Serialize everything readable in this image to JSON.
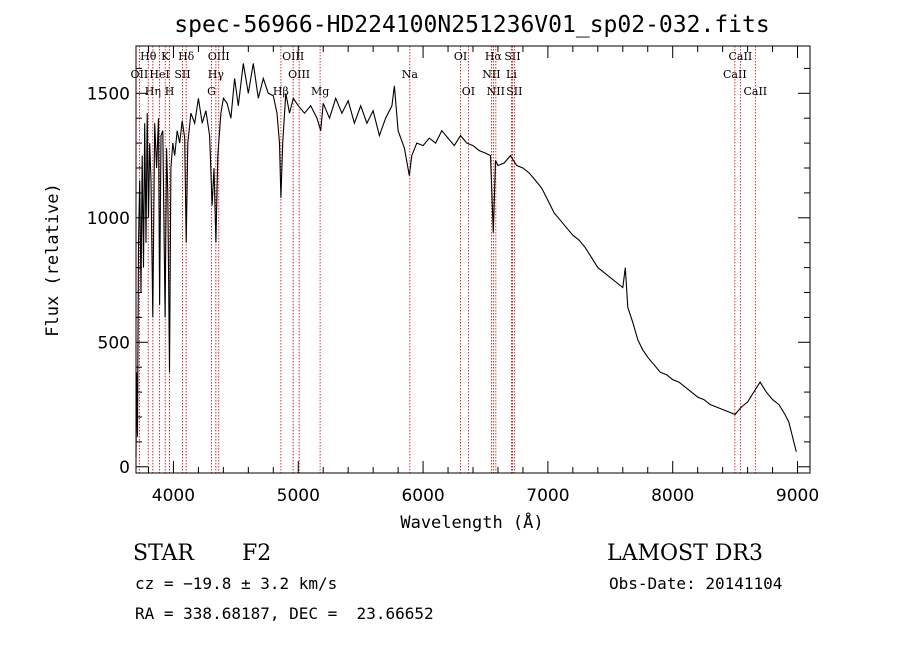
{
  "chart_data": {
    "type": "line",
    "title": "spec-56966-HD224100N251236V01_sp02-032.fits",
    "xlabel": "Wavelength (Å)",
    "ylabel": "Flux (relative)",
    "xlim": [
      3700,
      9100
    ],
    "ylim": [
      -25,
      1690
    ],
    "xticks": [
      4000,
      5000,
      6000,
      7000,
      8000,
      9000
    ],
    "yticks": [
      0,
      500,
      1000,
      1500
    ],
    "line_color": "#000000",
    "marker_color": "#cc0000",
    "series": [
      {
        "name": "flux",
        "points": [
          [
            3700,
            40
          ],
          [
            3705,
            380
          ],
          [
            3712,
            120
          ],
          [
            3720,
            900
          ],
          [
            3730,
            1150
          ],
          [
            3740,
            700
          ],
          [
            3750,
            1250
          ],
          [
            3760,
            800
          ],
          [
            3770,
            1380
          ],
          [
            3780,
            900
          ],
          [
            3790,
            1420
          ],
          [
            3800,
            1000
          ],
          [
            3810,
            1300
          ],
          [
            3820,
            1150
          ],
          [
            3835,
            600
          ],
          [
            3850,
            1380
          ],
          [
            3865,
            1200
          ],
          [
            3880,
            1400
          ],
          [
            3889,
            650
          ],
          [
            3900,
            1330
          ],
          [
            3915,
            1350
          ],
          [
            3933,
            600
          ],
          [
            3945,
            1280
          ],
          [
            3955,
            1100
          ],
          [
            3968,
            380
          ],
          [
            3980,
            1200
          ],
          [
            3995,
            1300
          ],
          [
            4010,
            1250
          ],
          [
            4030,
            1350
          ],
          [
            4050,
            1300
          ],
          [
            4070,
            1390
          ],
          [
            4090,
            1320
          ],
          [
            4102,
            900
          ],
          [
            4115,
            1300
          ],
          [
            4140,
            1420
          ],
          [
            4170,
            1380
          ],
          [
            4200,
            1480
          ],
          [
            4230,
            1380
          ],
          [
            4260,
            1430
          ],
          [
            4290,
            1330
          ],
          [
            4310,
            1050
          ],
          [
            4325,
            1200
          ],
          [
            4340,
            900
          ],
          [
            4355,
            1250
          ],
          [
            4380,
            1420
          ],
          [
            4400,
            1480
          ],
          [
            4430,
            1460
          ],
          [
            4460,
            1400
          ],
          [
            4490,
            1560
          ],
          [
            4520,
            1450
          ],
          [
            4560,
            1620
          ],
          [
            4600,
            1500
          ],
          [
            4640,
            1620
          ],
          [
            4680,
            1480
          ],
          [
            4720,
            1560
          ],
          [
            4760,
            1500
          ],
          [
            4800,
            1490
          ],
          [
            4830,
            1420
          ],
          [
            4850,
            1300
          ],
          [
            4861,
            1080
          ],
          [
            4875,
            1300
          ],
          [
            4900,
            1500
          ],
          [
            4930,
            1420
          ],
          [
            4960,
            1480
          ],
          [
            5000,
            1450
          ],
          [
            5050,
            1420
          ],
          [
            5100,
            1450
          ],
          [
            5150,
            1400
          ],
          [
            5180,
            1350
          ],
          [
            5200,
            1460
          ],
          [
            5250,
            1400
          ],
          [
            5300,
            1480
          ],
          [
            5350,
            1420
          ],
          [
            5400,
            1470
          ],
          [
            5450,
            1380
          ],
          [
            5500,
            1450
          ],
          [
            5550,
            1380
          ],
          [
            5600,
            1430
          ],
          [
            5650,
            1330
          ],
          [
            5700,
            1400
          ],
          [
            5750,
            1450
          ],
          [
            5770,
            1530
          ],
          [
            5800,
            1350
          ],
          [
            5850,
            1280
          ],
          [
            5890,
            1170
          ],
          [
            5910,
            1250
          ],
          [
            5950,
            1300
          ],
          [
            6000,
            1290
          ],
          [
            6050,
            1320
          ],
          [
            6100,
            1300
          ],
          [
            6150,
            1350
          ],
          [
            6200,
            1320
          ],
          [
            6250,
            1290
          ],
          [
            6300,
            1330
          ],
          [
            6350,
            1300
          ],
          [
            6400,
            1290
          ],
          [
            6450,
            1270
          ],
          [
            6500,
            1260
          ],
          [
            6540,
            1250
          ],
          [
            6563,
            940
          ],
          [
            6580,
            1230
          ],
          [
            6600,
            1210
          ],
          [
            6650,
            1220
          ],
          [
            6700,
            1250
          ],
          [
            6750,
            1210
          ],
          [
            6800,
            1200
          ],
          [
            6850,
            1180
          ],
          [
            6900,
            1150
          ],
          [
            6950,
            1120
          ],
          [
            7000,
            1070
          ],
          [
            7050,
            1020
          ],
          [
            7100,
            990
          ],
          [
            7150,
            960
          ],
          [
            7200,
            930
          ],
          [
            7250,
            910
          ],
          [
            7300,
            880
          ],
          [
            7350,
            840
          ],
          [
            7400,
            800
          ],
          [
            7450,
            780
          ],
          [
            7500,
            760
          ],
          [
            7550,
            740
          ],
          [
            7600,
            720
          ],
          [
            7620,
            800
          ],
          [
            7640,
            640
          ],
          [
            7680,
            580
          ],
          [
            7720,
            510
          ],
          [
            7760,
            470
          ],
          [
            7800,
            440
          ],
          [
            7850,
            410
          ],
          [
            7900,
            380
          ],
          [
            7950,
            370
          ],
          [
            8000,
            350
          ],
          [
            8050,
            340
          ],
          [
            8100,
            320
          ],
          [
            8150,
            300
          ],
          [
            8200,
            280
          ],
          [
            8250,
            270
          ],
          [
            8300,
            250
          ],
          [
            8350,
            240
          ],
          [
            8400,
            230
          ],
          [
            8450,
            220
          ],
          [
            8500,
            210
          ],
          [
            8550,
            240
          ],
          [
            8600,
            260
          ],
          [
            8650,
            300
          ],
          [
            8700,
            340
          ],
          [
            8750,
            300
          ],
          [
            8800,
            270
          ],
          [
            8850,
            250
          ],
          [
            8900,
            210
          ],
          [
            8930,
            180
          ],
          [
            8950,
            140
          ],
          [
            8970,
            100
          ],
          [
            8990,
            60
          ]
        ]
      }
    ],
    "line_markers": [
      {
        "name": "Hθ",
        "wavelength": 3798,
        "row": 0
      },
      {
        "name": "OII",
        "wavelength": 3727,
        "row": 1
      },
      {
        "name": "Hη",
        "wavelength": 3835,
        "row": 2
      },
      {
        "name": "HeI",
        "wavelength": 3889,
        "row": 1
      },
      {
        "name": "K",
        "wavelength": 3934,
        "row": 0
      },
      {
        "name": "H",
        "wavelength": 3969,
        "row": 2
      },
      {
        "name": "SII",
        "wavelength": 4072,
        "row": 1
      },
      {
        "name": "Hδ",
        "wavelength": 4102,
        "row": 0
      },
      {
        "name": "OIII",
        "wavelength": 4363,
        "row": 0
      },
      {
        "name": "Hγ",
        "wavelength": 4340,
        "row": 1
      },
      {
        "name": "G",
        "wavelength": 4305,
        "row": 2
      },
      {
        "name": "Hβ",
        "wavelength": 4861,
        "row": 2
      },
      {
        "name": "OIII",
        "wavelength": 4959,
        "row": 0
      },
      {
        "name": "OIII",
        "wavelength": 5007,
        "row": 1
      },
      {
        "name": "Mg",
        "wavelength": 5175,
        "row": 2
      },
      {
        "name": "Na",
        "wavelength": 5894,
        "row": 1
      },
      {
        "name": "OI",
        "wavelength": 6300,
        "row": 0
      },
      {
        "name": "OI",
        "wavelength": 6363,
        "row": 2
      },
      {
        "name": "Hα",
        "wavelength": 6563,
        "row": 0
      },
      {
        "name": "NII",
        "wavelength": 6548,
        "row": 1
      },
      {
        "name": "NII",
        "wavelength": 6583,
        "row": 2
      },
      {
        "name": "SII",
        "wavelength": 6716,
        "row": 0
      },
      {
        "name": "Li",
        "wavelength": 6708,
        "row": 1
      },
      {
        "name": "SII",
        "wavelength": 6731,
        "row": 2
      },
      {
        "name": "CaII",
        "wavelength": 8542,
        "row": 0
      },
      {
        "name": "CaII",
        "wavelength": 8498,
        "row": 1
      },
      {
        "name": "CaII",
        "wavelength": 8662,
        "row": 2
      }
    ]
  },
  "info": {
    "class": "STAR",
    "subclass": "F2",
    "cz": "cz = −19.8 ± 3.2 km/s",
    "radec": "RA = 338.68187, DEC =  23.66652",
    "survey": "LAMOST DR3",
    "obs_date": "Obs-Date: 20141104"
  }
}
